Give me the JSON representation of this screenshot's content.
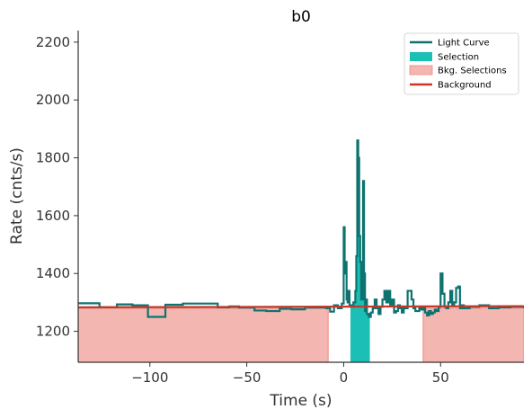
{
  "chart_data": {
    "type": "line",
    "title": "b0",
    "xlabel": "Time (s)",
    "ylabel": "Rate (cnts/s)",
    "xlim": [
      -137,
      93
    ],
    "ylim": [
      1093,
      2240
    ],
    "xticks": [
      -100,
      -50,
      0,
      50
    ],
    "xtick_labels": [
      "−100",
      "−50",
      "0",
      "50"
    ],
    "yticks": [
      1200,
      1400,
      1600,
      1800,
      2000,
      2200
    ],
    "ytick_labels": [
      "1200",
      "1400",
      "1600",
      "1800",
      "2000",
      "2200"
    ],
    "legend_position": "top-right",
    "colors": {
      "light_curve": "#0e7370",
      "selection": "#1bbfb5",
      "bkg_selection": "#f4b6b0",
      "bkg_selection_edge": "#ec8a80",
      "background": "#c0392b",
      "axis": "#333333"
    },
    "series": [
      {
        "name": "Light Curve",
        "kind": "step",
        "x": [
          -137,
          -126,
          -117,
          -109,
          -101,
          -92,
          -83,
          -73,
          -65,
          -59,
          -54,
          -46,
          -40,
          -33,
          -27,
          -20,
          -14,
          -9,
          -7,
          -5,
          -3,
          -1,
          0,
          0.5,
          1,
          1.5,
          2,
          2.5,
          3,
          4,
          5,
          6,
          6.5,
          7,
          7.5,
          8,
          8.5,
          9,
          10,
          10.5,
          11,
          11.5,
          12,
          13,
          14,
          15,
          16,
          17,
          18,
          19,
          20,
          21,
          22,
          23,
          24,
          25,
          26,
          27,
          28,
          29,
          30,
          31,
          33,
          35,
          36,
          37,
          38,
          39,
          40,
          41,
          42,
          43,
          44,
          45,
          46,
          47,
          48,
          49,
          50,
          51,
          52,
          53,
          54,
          55,
          56,
          57,
          58,
          59,
          60,
          61,
          62,
          65,
          70,
          75,
          80,
          86,
          93
        ],
        "y": [
          1297,
          1283,
          1293,
          1290,
          1250,
          1292,
          1296,
          1296,
          1283,
          1286,
          1282,
          1272,
          1270,
          1278,
          1276,
          1282,
          1282,
          1280,
          1268,
          1290,
          1280,
          1296,
          1560,
          1400,
          1440,
          1310,
          1300,
          1340,
          1290,
          1285,
          1300,
          1340,
          1460,
          1860,
          1800,
          1530,
          1440,
          1310,
          1720,
          1400,
          1270,
          1310,
          1260,
          1250,
          1265,
          1280,
          1310,
          1280,
          1260,
          1285,
          1310,
          1340,
          1300,
          1340,
          1290,
          1310,
          1265,
          1270,
          1290,
          1280,
          1265,
          1280,
          1340,
          1310,
          1280,
          1270,
          1270,
          1280,
          1275,
          1280,
          1265,
          1255,
          1270,
          1260,
          1265,
          1275,
          1270,
          1285,
          1400,
          1330,
          1285,
          1280,
          1300,
          1340,
          1290,
          1300,
          1350,
          1355,
          1280,
          1290,
          1280,
          1285,
          1290,
          1280,
          1283,
          1285,
          1280
        ]
      },
      {
        "name": "Selection",
        "kind": "span",
        "x_range": [
          3.5,
          13.5
        ]
      },
      {
        "name": "Bkg. Selections",
        "kind": "spans",
        "ranges": [
          [
            -137,
            -8
          ],
          [
            41,
            93
          ]
        ],
        "values": [
          1280,
          1280
        ]
      },
      {
        "name": "Background",
        "kind": "line",
        "x": [
          -137,
          93
        ],
        "y": [
          1283,
          1287
        ]
      }
    ]
  }
}
